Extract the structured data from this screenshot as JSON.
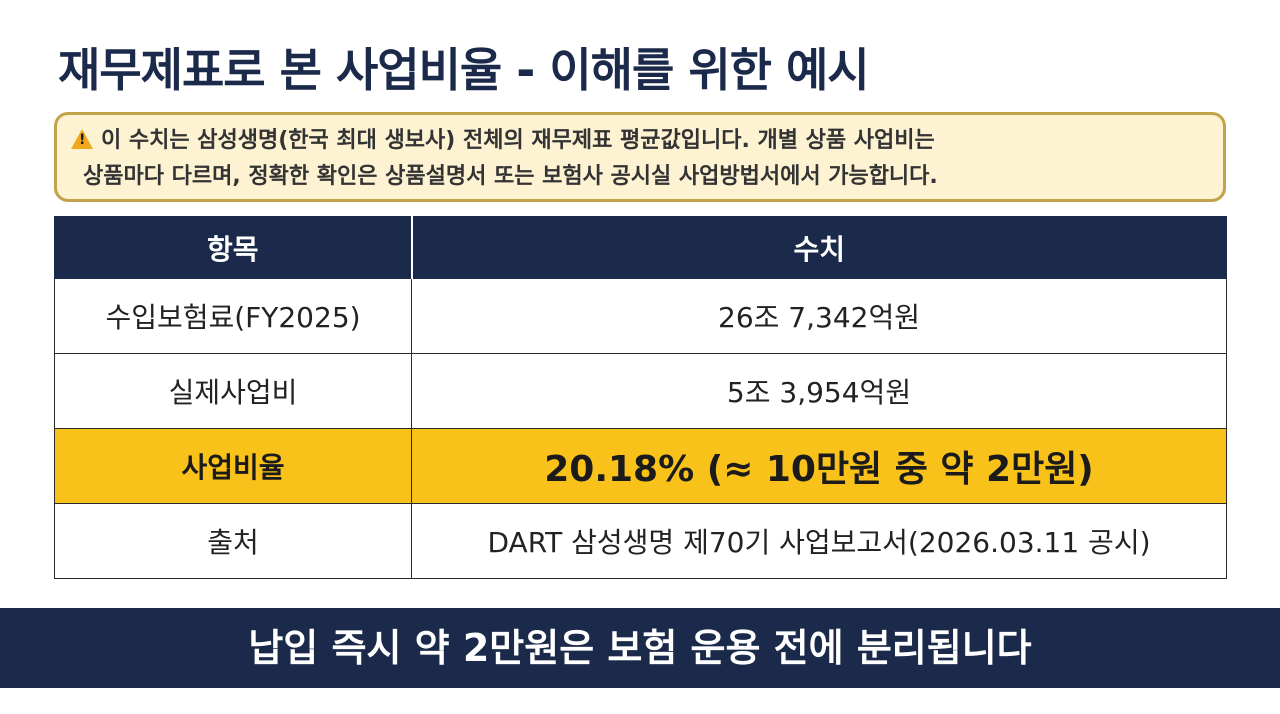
{
  "title": "재무제표로 본 사업비율 - 이해를 위한 예시",
  "notice": {
    "icon": "warning-icon",
    "line1": "이 수치는 삼성생명(한국 최대 생보사) 전체의 재무제표 평균값입니다. 개별 상품 사업비는",
    "line2": "상품마다 다르며, 정확한 확인은 상품설명서 또는 보험사 공시실 사업방법서에서 가능합니다."
  },
  "table": {
    "headers": [
      "항목",
      "수치"
    ],
    "rows": [
      {
        "label": "수입보험료(FY2025)",
        "value": "26조 7,342억원"
      },
      {
        "label": "실제사업비",
        "value": "5조 3,954억원"
      },
      {
        "label": "사업비율",
        "value": "20.18% (≈ 10만원 중 약 2만원)"
      },
      {
        "label": "출처",
        "value": "DART 삼성생명 제70기 사업보고서(2026.03.11 공시)"
      }
    ]
  },
  "banner": "납입 즉시 약 2만원은 보험 운용 전에 분리됩니다",
  "colors": {
    "navy": "#1b2a4a",
    "highlight": "#f8c21a",
    "notice_bg": "#fdf3d3",
    "notice_border": "#c2a24a"
  }
}
